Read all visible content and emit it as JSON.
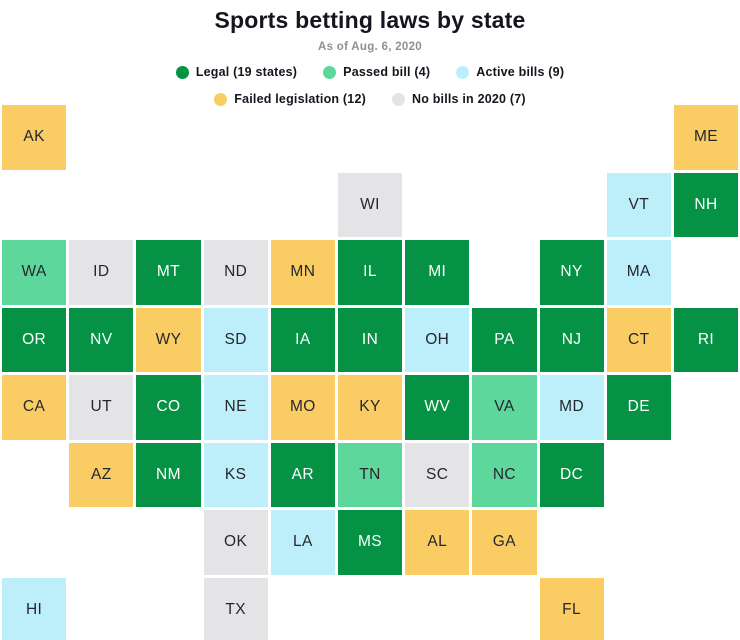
{
  "header": {
    "title": "Sports betting laws by state",
    "subtitle": "As of Aug. 6, 2020"
  },
  "chart_data": {
    "type": "heatmap",
    "subtype": "tile-grid-map",
    "title": "Sports betting laws by state",
    "subtitle": "As of Aug. 6, 2020",
    "legend_position": "top",
    "grid": {
      "columns": 11,
      "rows": 8
    },
    "statuses": [
      {
        "key": "legal",
        "label": "Legal (19 states)",
        "count": 19,
        "color": "#059245",
        "text_color": "#ffffff"
      },
      {
        "key": "passed",
        "label": "Passed bill (4)",
        "count": 4,
        "color": "#5ed79d",
        "text_color": "#26262e"
      },
      {
        "key": "active",
        "label": "Active bills (9)",
        "count": 9,
        "color": "#bdeffb",
        "text_color": "#26262e"
      },
      {
        "key": "failed",
        "label": "Failed legislation (12)",
        "count": 12,
        "color": "#f9cd63",
        "text_color": "#26262e"
      },
      {
        "key": "none",
        "label": "No bills in 2020 (7)",
        "count": 7,
        "color": "#e4e4e6",
        "text_color": "#26262e"
      }
    ],
    "legend_rows": [
      [
        0,
        1,
        2
      ],
      [
        3,
        4
      ]
    ],
    "tiles": [
      {
        "abbr": "AK",
        "row": 0,
        "col": 0,
        "status": "failed"
      },
      {
        "abbr": "ME",
        "row": 0,
        "col": 10,
        "status": "failed"
      },
      {
        "abbr": "WI",
        "row": 1,
        "col": 5,
        "status": "none"
      },
      {
        "abbr": "VT",
        "row": 1,
        "col": 9,
        "status": "active"
      },
      {
        "abbr": "NH",
        "row": 1,
        "col": 10,
        "status": "legal"
      },
      {
        "abbr": "WA",
        "row": 2,
        "col": 0,
        "status": "passed"
      },
      {
        "abbr": "ID",
        "row": 2,
        "col": 1,
        "status": "none"
      },
      {
        "abbr": "MT",
        "row": 2,
        "col": 2,
        "status": "legal"
      },
      {
        "abbr": "ND",
        "row": 2,
        "col": 3,
        "status": "none"
      },
      {
        "abbr": "MN",
        "row": 2,
        "col": 4,
        "status": "failed"
      },
      {
        "abbr": "IL",
        "row": 2,
        "col": 5,
        "status": "legal"
      },
      {
        "abbr": "MI",
        "row": 2,
        "col": 6,
        "status": "legal"
      },
      {
        "abbr": "NY",
        "row": 2,
        "col": 8,
        "status": "legal"
      },
      {
        "abbr": "MA",
        "row": 2,
        "col": 9,
        "status": "active"
      },
      {
        "abbr": "OR",
        "row": 3,
        "col": 0,
        "status": "legal"
      },
      {
        "abbr": "NV",
        "row": 3,
        "col": 1,
        "status": "legal"
      },
      {
        "abbr": "WY",
        "row": 3,
        "col": 2,
        "status": "failed"
      },
      {
        "abbr": "SD",
        "row": 3,
        "col": 3,
        "status": "active"
      },
      {
        "abbr": "IA",
        "row": 3,
        "col": 4,
        "status": "legal"
      },
      {
        "abbr": "IN",
        "row": 3,
        "col": 5,
        "status": "legal"
      },
      {
        "abbr": "OH",
        "row": 3,
        "col": 6,
        "status": "active"
      },
      {
        "abbr": "PA",
        "row": 3,
        "col": 7,
        "status": "legal"
      },
      {
        "abbr": "NJ",
        "row": 3,
        "col": 8,
        "status": "legal"
      },
      {
        "abbr": "CT",
        "row": 3,
        "col": 9,
        "status": "failed"
      },
      {
        "abbr": "RI",
        "row": 3,
        "col": 10,
        "status": "legal"
      },
      {
        "abbr": "CA",
        "row": 4,
        "col": 0,
        "status": "failed"
      },
      {
        "abbr": "UT",
        "row": 4,
        "col": 1,
        "status": "none"
      },
      {
        "abbr": "CO",
        "row": 4,
        "col": 2,
        "status": "legal"
      },
      {
        "abbr": "NE",
        "row": 4,
        "col": 3,
        "status": "active"
      },
      {
        "abbr": "MO",
        "row": 4,
        "col": 4,
        "status": "failed"
      },
      {
        "abbr": "KY",
        "row": 4,
        "col": 5,
        "status": "failed"
      },
      {
        "abbr": "WV",
        "row": 4,
        "col": 6,
        "status": "legal"
      },
      {
        "abbr": "VA",
        "row": 4,
        "col": 7,
        "status": "passed"
      },
      {
        "abbr": "MD",
        "row": 4,
        "col": 8,
        "status": "active"
      },
      {
        "abbr": "DE",
        "row": 4,
        "col": 9,
        "status": "legal"
      },
      {
        "abbr": "AZ",
        "row": 5,
        "col": 1,
        "status": "failed"
      },
      {
        "abbr": "NM",
        "row": 5,
        "col": 2,
        "status": "legal"
      },
      {
        "abbr": "KS",
        "row": 5,
        "col": 3,
        "status": "active"
      },
      {
        "abbr": "AR",
        "row": 5,
        "col": 4,
        "status": "legal"
      },
      {
        "abbr": "TN",
        "row": 5,
        "col": 5,
        "status": "passed"
      },
      {
        "abbr": "SC",
        "row": 5,
        "col": 6,
        "status": "none"
      },
      {
        "abbr": "NC",
        "row": 5,
        "col": 7,
        "status": "passed"
      },
      {
        "abbr": "DC",
        "row": 5,
        "col": 8,
        "status": "legal"
      },
      {
        "abbr": "OK",
        "row": 6,
        "col": 3,
        "status": "none"
      },
      {
        "abbr": "LA",
        "row": 6,
        "col": 4,
        "status": "active"
      },
      {
        "abbr": "MS",
        "row": 6,
        "col": 5,
        "status": "legal"
      },
      {
        "abbr": "AL",
        "row": 6,
        "col": 6,
        "status": "failed"
      },
      {
        "abbr": "GA",
        "row": 6,
        "col": 7,
        "status": "failed"
      },
      {
        "abbr": "HI",
        "row": 7,
        "col": 0,
        "status": "active"
      },
      {
        "abbr": "TX",
        "row": 7,
        "col": 3,
        "status": "none"
      },
      {
        "abbr": "FL",
        "row": 7,
        "col": 8,
        "status": "failed"
      }
    ]
  }
}
